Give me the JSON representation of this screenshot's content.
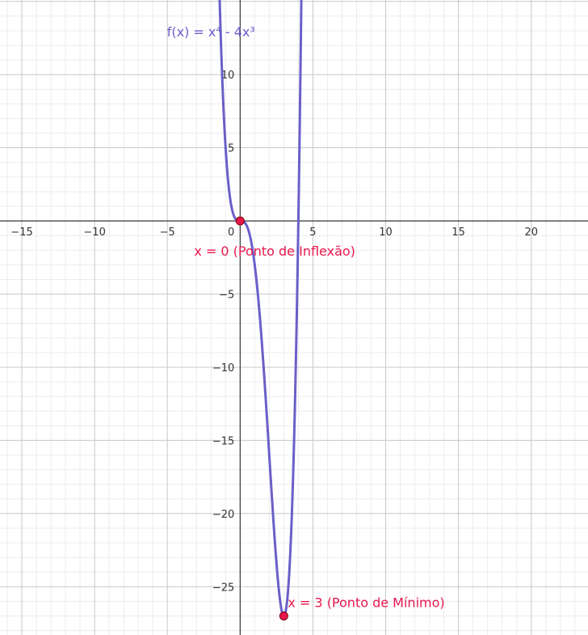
{
  "chart_data": {
    "type": "line",
    "title": "",
    "xlabel": "",
    "ylabel": "",
    "xlim": [
      -16.5,
      23.9
    ],
    "ylim": [
      -28.3,
      15.1
    ],
    "grid": true,
    "x_ticks": [
      -15,
      -10,
      -5,
      5,
      10,
      15,
      20
    ],
    "y_ticks": [
      10,
      5,
      -5,
      -10,
      -15,
      -20,
      -25
    ],
    "x_tick_labels": [
      "−15",
      "−10",
      "−5",
      "5",
      "10",
      "15",
      "20"
    ],
    "y_tick_labels": [
      "10",
      "5",
      "−5",
      "−10",
      "−15",
      "−20",
      "−25"
    ],
    "origin_label": "0",
    "series": [
      {
        "name": "f(x) = x⁴ - 4x³",
        "color": "#6a5fc8",
        "expression": "x^4 - 4x^3",
        "x": [
          -1.3,
          -1.0,
          -0.8,
          -0.6,
          -0.4,
          -0.2,
          0,
          0.5,
          1,
          1.5,
          2,
          2.5,
          3,
          3.5,
          4,
          4.3
        ],
        "y": [
          11.7,
          5.0,
          2.46,
          0.99,
          0.28,
          0.03,
          0,
          -0.44,
          -3.0,
          -8.44,
          -16.0,
          -23.44,
          -27.0,
          -21.44,
          0,
          13.36
        ]
      }
    ],
    "points": [
      {
        "x": 0,
        "y": 0,
        "label": "x = 0 (Ponto de Inflexão)",
        "color": "#e8174d"
      },
      {
        "x": 3,
        "y": -27,
        "label": "x = 3 (Ponto de Mínimo)",
        "color": "#e8174d"
      }
    ],
    "colors": {
      "major_grid": "#c8c8c8",
      "minor_grid": "#ececec",
      "axis": "#333333",
      "point_fill": "#e8174d",
      "point_stroke": "#7a0000"
    }
  }
}
